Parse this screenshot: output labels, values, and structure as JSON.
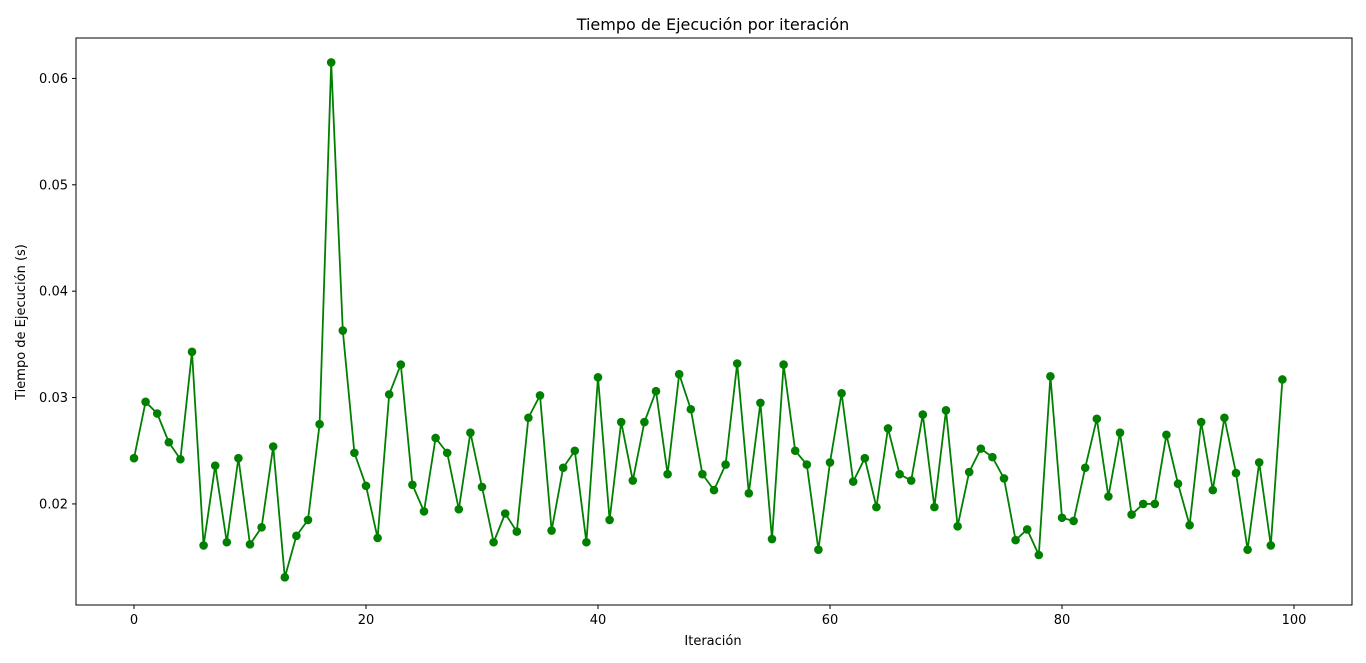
{
  "chart_data": {
    "type": "line",
    "title": "Tiempo de Ejecución por iteración",
    "xlabel": "Iteración",
    "ylabel": "Tiempo de Ejecución (s)",
    "xlim": [
      -5,
      105
    ],
    "ylim": [
      0.0105,
      0.0638
    ],
    "xticks": [
      0,
      20,
      40,
      60,
      80,
      100
    ],
    "yticks": [
      0.02,
      0.03,
      0.04,
      0.05,
      0.06
    ],
    "xtick_labels": [
      "0",
      "20",
      "40",
      "60",
      "80",
      "100"
    ],
    "ytick_labels": [
      "0.02",
      "0.03",
      "0.04",
      "0.05",
      "0.06"
    ],
    "grid": false,
    "series": [
      {
        "color": "#008000",
        "marker": "circle",
        "x": [
          0,
          1,
          2,
          3,
          4,
          5,
          6,
          7,
          8,
          9,
          10,
          11,
          12,
          13,
          14,
          15,
          16,
          17,
          18,
          19,
          20,
          21,
          22,
          23,
          24,
          25,
          26,
          27,
          28,
          29,
          30,
          31,
          32,
          33,
          34,
          35,
          36,
          37,
          38,
          39,
          40,
          41,
          42,
          43,
          44,
          45,
          46,
          47,
          48,
          49,
          50,
          51,
          52,
          53,
          54,
          55,
          56,
          57,
          58,
          59,
          60,
          61,
          62,
          63,
          64,
          65,
          66,
          67,
          68,
          69,
          70,
          71,
          72,
          73,
          74,
          75,
          76,
          77,
          78,
          79,
          80,
          81,
          82,
          83,
          84,
          85,
          86,
          87,
          88,
          89,
          90,
          91,
          92,
          93,
          94,
          95,
          96,
          97,
          98,
          99
        ],
        "y": [
          0.0243,
          0.0296,
          0.0285,
          0.0258,
          0.0242,
          0.0343,
          0.0161,
          0.0236,
          0.0164,
          0.0243,
          0.0162,
          0.0178,
          0.0254,
          0.0131,
          0.017,
          0.0185,
          0.0275,
          0.0615,
          0.0363,
          0.0248,
          0.0217,
          0.0168,
          0.0303,
          0.0331,
          0.0218,
          0.0193,
          0.0262,
          0.0248,
          0.0195,
          0.0267,
          0.0216,
          0.0164,
          0.0191,
          0.0174,
          0.0281,
          0.0302,
          0.0175,
          0.0234,
          0.025,
          0.0164,
          0.0319,
          0.0185,
          0.0277,
          0.0222,
          0.0277,
          0.0306,
          0.0228,
          0.0322,
          0.0289,
          0.0228,
          0.0213,
          0.0237,
          0.0332,
          0.021,
          0.0295,
          0.0167,
          0.0331,
          0.025,
          0.0237,
          0.0157,
          0.0239,
          0.0304,
          0.0221,
          0.0243,
          0.0197,
          0.0271,
          0.0228,
          0.0222,
          0.0284,
          0.0197,
          0.0288,
          0.0179,
          0.023,
          0.0252,
          0.0244,
          0.0224,
          0.0166,
          0.0176,
          0.0152,
          0.032,
          0.0187,
          0.0184,
          0.0234,
          0.028,
          0.0207,
          0.0267,
          0.019,
          0.02,
          0.02,
          0.0265,
          0.0219,
          0.018,
          0.0277,
          0.0213,
          0.0281,
          0.0229,
          0.0157,
          0.0239,
          0.0161,
          0.0317
        ]
      }
    ]
  }
}
